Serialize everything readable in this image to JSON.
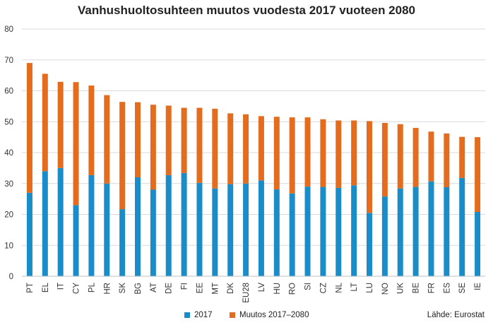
{
  "chart_data": {
    "type": "bar",
    "stacked": true,
    "title": "Vanhushuoltosuhteen muutos vuodesta 2017 vuoteen 2080",
    "categories": [
      "PT",
      "EL",
      "IT",
      "CY",
      "PL",
      "HR",
      "SK",
      "BG",
      "AT",
      "DE",
      "FI",
      "EE",
      "MT",
      "DK",
      "EU28",
      "LV",
      "HU",
      "RO",
      "SI",
      "CZ",
      "NL",
      "LT",
      "LU",
      "NO",
      "UK",
      "BE",
      "FR",
      "ES",
      "SE",
      "IE"
    ],
    "series": [
      {
        "name": "2017",
        "color": "#1a8cc8",
        "values": [
          27,
          34,
          35,
          23,
          32.7,
          30,
          21.7,
          32,
          28,
          32.7,
          33.4,
          30.2,
          28.4,
          29.8,
          30,
          31,
          28.1,
          26.8,
          29,
          28.9,
          28.6,
          29.4,
          20.5,
          25.8,
          28.4,
          28.9,
          30.7,
          28.8,
          31.8,
          20.8
        ]
      },
      {
        "name": "Muutos 2017–2080",
        "color": "#e46c1f",
        "values": [
          42,
          31.5,
          27.9,
          39.8,
          29,
          28.6,
          34.7,
          24.3,
          27.5,
          22.5,
          21.1,
          24.3,
          25.8,
          22.9,
          22.4,
          20.8,
          23.5,
          24.6,
          22.4,
          21.9,
          21.8,
          21,
          29.7,
          23.8,
          20.8,
          19.1,
          16.1,
          17.4,
          13.3,
          24.2
        ]
      }
    ],
    "ylim": [
      0,
      80
    ],
    "yticks": [
      0,
      10,
      20,
      30,
      40,
      50,
      60,
      70,
      80
    ],
    "grid": true,
    "legend_position": "bottom-left"
  },
  "source": "Lähde: Eurostat"
}
